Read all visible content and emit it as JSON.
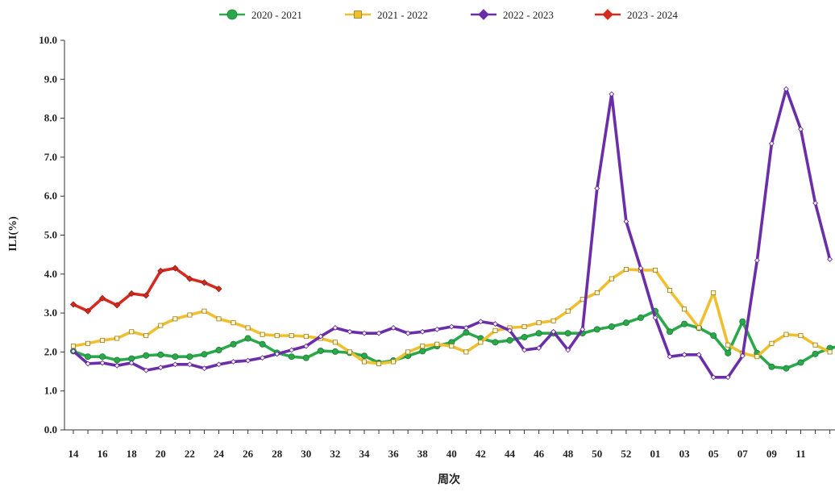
{
  "chart_data": {
    "type": "line",
    "xlabel": "周次",
    "ylabel": "ILI(%)",
    "ylim": [
      0,
      10
    ],
    "yticks": [
      "0.0",
      "1.0",
      "2.0",
      "3.0",
      "4.0",
      "5.0",
      "6.0",
      "7.0",
      "8.0",
      "9.0",
      "10.0"
    ],
    "x_tick_labels": [
      "14",
      "16",
      "18",
      "20",
      "22",
      "24",
      "26",
      "28",
      "30",
      "32",
      "34",
      "36",
      "38",
      "40",
      "42",
      "44",
      "46",
      "48",
      "50",
      "52",
      "01",
      "03",
      "05",
      "07",
      "09",
      "11"
    ],
    "grid": false,
    "legend": "top-center",
    "series": [
      {
        "name": "2020 - 2021",
        "color": "#2aa84a",
        "marker": "circle",
        "start_index": 0,
        "values": [
          2.02,
          1.88,
          1.88,
          1.79,
          1.83,
          1.91,
          1.93,
          1.88,
          1.88,
          1.94,
          2.05,
          2.2,
          2.35,
          2.2,
          1.98,
          1.88,
          1.85,
          2.03,
          2.01,
          1.98,
          1.9,
          1.72,
          1.78,
          1.9,
          2.02,
          2.15,
          2.25,
          2.5,
          2.35,
          2.25,
          2.3,
          2.38,
          2.48,
          2.48,
          2.48,
          2.48,
          2.58,
          2.65,
          2.75,
          2.88,
          3.05,
          2.52,
          2.72,
          2.62,
          2.42,
          1.97,
          2.78,
          1.97,
          1.62,
          1.58,
          1.73,
          1.95,
          2.1,
          2.17
        ]
      },
      {
        "name": "2021 - 2022",
        "color": "#f0bf30",
        "marker": "square",
        "start_index": 0,
        "values": [
          2.15,
          2.22,
          2.3,
          2.35,
          2.52,
          2.42,
          2.68,
          2.85,
          2.95,
          3.05,
          2.85,
          2.75,
          2.62,
          2.45,
          2.42,
          2.42,
          2.4,
          2.35,
          2.25,
          2.0,
          1.75,
          1.7,
          1.75,
          2.0,
          2.15,
          2.2,
          2.15,
          2.0,
          2.25,
          2.55,
          2.62,
          2.65,
          2.75,
          2.8,
          3.05,
          3.35,
          3.52,
          3.88,
          4.12,
          4.1,
          4.1,
          3.58,
          3.1,
          2.62,
          3.52,
          2.18,
          1.97,
          1.88,
          2.22,
          2.45,
          2.42,
          2.18,
          2.0
        ]
      },
      {
        "name": "2022 - 2023",
        "color": "#6b2ea8",
        "marker": "diamond",
        "start_index": 0,
        "values": [
          2.02,
          1.7,
          1.72,
          1.65,
          1.72,
          1.53,
          1.6,
          1.68,
          1.68,
          1.58,
          1.68,
          1.75,
          1.78,
          1.85,
          1.95,
          2.05,
          2.15,
          2.4,
          2.62,
          2.52,
          2.48,
          2.48,
          2.62,
          2.48,
          2.52,
          2.58,
          2.65,
          2.62,
          2.78,
          2.72,
          2.55,
          2.05,
          2.1,
          2.52,
          2.05,
          2.58,
          6.2,
          8.62,
          5.35,
          4.15,
          2.88,
          1.88,
          1.93,
          1.93,
          1.35,
          1.35,
          1.9,
          4.35,
          7.35,
          8.75,
          7.72,
          5.82,
          4.38
        ]
      },
      {
        "name": "2023 - 2024",
        "color": "#d42a1f",
        "marker": "diamond",
        "start_index": 0,
        "values": [
          3.22,
          3.05,
          3.38,
          3.2,
          3.5,
          3.45,
          4.08,
          4.15,
          3.88,
          3.78,
          3.62
        ]
      }
    ]
  }
}
